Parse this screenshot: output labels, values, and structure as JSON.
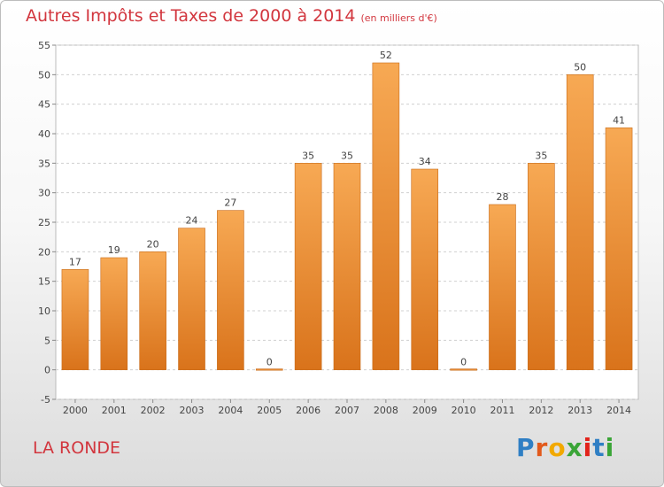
{
  "title": "Autres Impôts et Taxes de 2000 à 2014",
  "unit_note": "(en milliers d'€)",
  "place_label": "LA RONDE",
  "logo_text": "Proxiti",
  "chart_data": {
    "type": "bar",
    "title": "Autres Impôts et Taxes de 2000 à 2014",
    "unit": "(en milliers d'€)",
    "categories": [
      "2000",
      "2001",
      "2002",
      "2003",
      "2004",
      "2005",
      "2006",
      "2007",
      "2008",
      "2009",
      "2010",
      "2011",
      "2012",
      "2013",
      "2014"
    ],
    "values": [
      17,
      19,
      20,
      24,
      27,
      0,
      35,
      35,
      52,
      34,
      0,
      28,
      35,
      50,
      41
    ],
    "ylim": [
      -5,
      55
    ],
    "yticks": [
      -5,
      0,
      5,
      10,
      15,
      20,
      25,
      30,
      35,
      40,
      45,
      50,
      55
    ],
    "grid": true,
    "bar_color": "#f0922e",
    "title_color": "#d2363e"
  }
}
